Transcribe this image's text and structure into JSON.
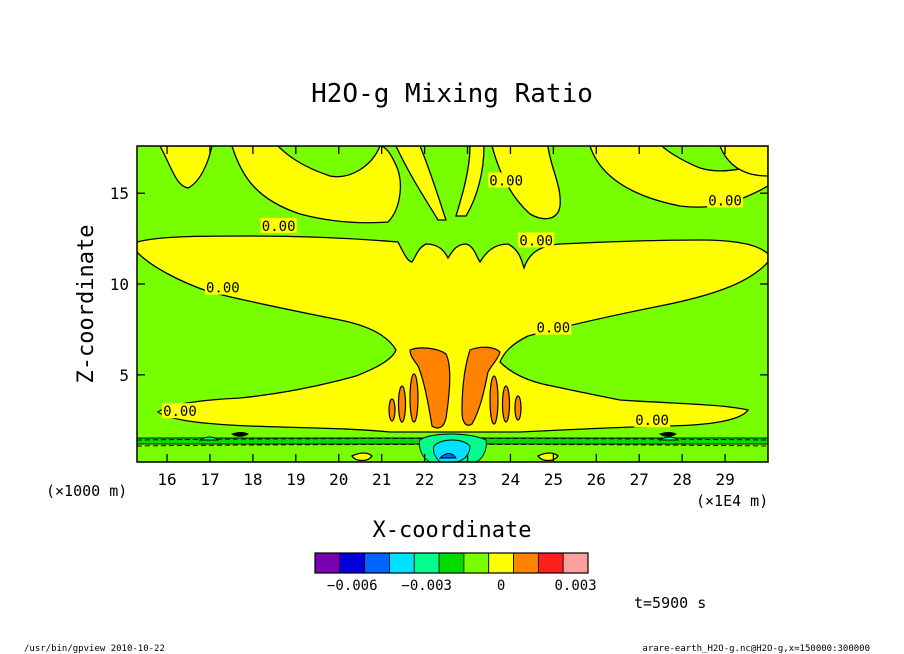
{
  "chart_data": {
    "type": "heatmap",
    "title": "H2O-g Mixing Ratio",
    "xlabel": "X-coordinate",
    "ylabel": "Z-coordinate",
    "x_unit": "(×1E4 m)",
    "y_unit": "(×1000 m)",
    "xlim": [
      15.3,
      30.0
    ],
    "ylim": [
      0.2,
      17.6
    ],
    "x_ticks": [
      16,
      17,
      18,
      19,
      20,
      21,
      22,
      23,
      24,
      25,
      26,
      27,
      28,
      29
    ],
    "y_ticks": [
      5,
      10,
      15
    ],
    "contour_labels": [
      {
        "text": "0.00",
        "x": 18.6,
        "z": 13.2
      },
      {
        "text": "0.00",
        "x": 17.3,
        "z": 9.8
      },
      {
        "text": "0.00",
        "x": 16.3,
        "z": 3.0
      },
      {
        "text": "0.00",
        "x": 23.9,
        "z": 15.7
      },
      {
        "text": "0.00",
        "x": 24.6,
        "z": 12.4
      },
      {
        "text": "0.00",
        "x": 25.0,
        "z": 7.6
      },
      {
        "text": "0.00",
        "x": 29.0,
        "z": 14.6
      },
      {
        "text": "0.00",
        "x": 27.3,
        "z": 2.5
      }
    ],
    "colorbar": {
      "colors": [
        "#7a00b4",
        "#0000dc",
        "#0064ff",
        "#00e1ff",
        "#00ff8c",
        "#00dc00",
        "#78ff00",
        "#ffff00",
        "#ff8200",
        "#ff1e1e",
        "#ffa0a0"
      ],
      "tick_labels": [
        "−0.006",
        "−0.003",
        "0",
        "0.003"
      ],
      "tick_values": [
        -0.006,
        -0.003,
        0,
        0.003
      ],
      "range": [
        -0.0075,
        0.0035
      ]
    }
  },
  "time_label": "t=5900 s",
  "footer": {
    "left": "/usr/bin/gpview  2010-10-22",
    "right": "arare-earth_H2O-g.nc@H2O-g,x=150000:300000"
  },
  "colors": {
    "green": "#78ff00",
    "yellow": "#ffff00",
    "orange": "#ff8200",
    "dark_green": "#00dc00",
    "teal": "#00ff8c",
    "cyan": "#00e1ff"
  }
}
